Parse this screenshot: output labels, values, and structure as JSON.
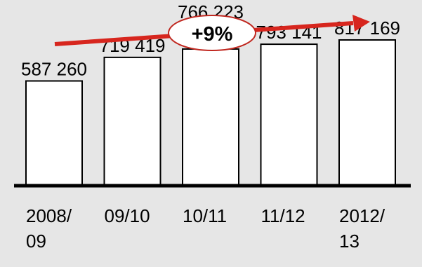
{
  "chart_data": {
    "type": "bar",
    "categories": [
      [
        "2008/",
        "09"
      ],
      [
        "09/10"
      ],
      [
        "10/11"
      ],
      [
        "11/12"
      ],
      [
        "2012/",
        "13"
      ]
    ],
    "values": [
      587260,
      719419,
      766223,
      793141,
      817169
    ],
    "value_labels": [
      "587 260",
      "719 419",
      "766 223",
      "793 141",
      "817 169"
    ],
    "trend_annotation": "+9%",
    "ylim": [
      0,
      1100000
    ],
    "grid": false,
    "legend": "none",
    "colors": {
      "background": "#e6e6e6",
      "bar_fill": "#ffffff",
      "bar_stroke": "#000000",
      "baseline": "#000000",
      "arrow": "#d7261e",
      "badge_fill": "#ffffff",
      "badge_stroke": "#c0271f"
    }
  }
}
